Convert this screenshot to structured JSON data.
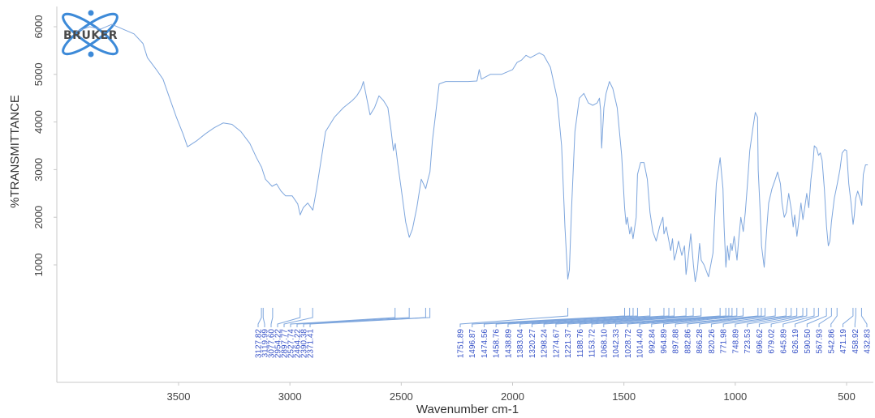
{
  "logo": {
    "text": "BRUKER"
  },
  "colors": {
    "spectrum": "#7ea6dd",
    "peak_lines": "#7ea6dd",
    "peak_labels": "#3a55c8",
    "axis": "#c8c8c8",
    "logo_orbit": "#3d8ad8"
  },
  "chart_data": {
    "type": "line",
    "title": "",
    "xlabel": "Wavenumber cm-1",
    "ylabel": "%TRANSMITTANCE",
    "xlim": [
      3960,
      400
    ],
    "ylim": [
      -2200,
      6200
    ],
    "x_reversed": true,
    "grid": false,
    "legend": "none",
    "x_ticks": [
      {
        "value": 3500,
        "label": "3500"
      },
      {
        "value": 3000,
        "label": "3000"
      },
      {
        "value": 2500,
        "label": "2500"
      },
      {
        "value": 2000,
        "label": "2000"
      },
      {
        "value": 1500,
        "label": "1500"
      },
      {
        "value": 1000,
        "label": "1000"
      },
      {
        "value": 500,
        "label": "500"
      }
    ],
    "y_ticks": [
      {
        "value": 1000,
        "label": "1000"
      },
      {
        "value": 2000,
        "label": "2000"
      },
      {
        "value": 3000,
        "label": "3000"
      },
      {
        "value": 4000,
        "label": "4000"
      },
      {
        "value": 5000,
        "label": "5000"
      },
      {
        "value": 6000,
        "label": "6000"
      }
    ],
    "series": [
      {
        "points": [
          [
            3960,
            5900
          ],
          [
            3900,
            6000
          ],
          [
            3850,
            5950
          ],
          [
            3800,
            6050
          ],
          [
            3750,
            5950
          ],
          [
            3700,
            5850
          ],
          [
            3660,
            5650
          ],
          [
            3640,
            5350
          ],
          [
            3600,
            5100
          ],
          [
            3570,
            4900
          ],
          [
            3540,
            4500
          ],
          [
            3510,
            4100
          ],
          [
            3480,
            3750
          ],
          [
            3460,
            3480
          ],
          [
            3420,
            3600
          ],
          [
            3380,
            3750
          ],
          [
            3340,
            3880
          ],
          [
            3300,
            3980
          ],
          [
            3260,
            3950
          ],
          [
            3220,
            3800
          ],
          [
            3180,
            3550
          ],
          [
            3150,
            3250
          ],
          [
            3127,
            3050
          ],
          [
            3110,
            2800
          ],
          [
            3080,
            2650
          ],
          [
            3060,
            2700
          ],
          [
            3040,
            2550
          ],
          [
            3020,
            2450
          ],
          [
            2990,
            2450
          ],
          [
            2965,
            2280
          ],
          [
            2954,
            2050
          ],
          [
            2940,
            2200
          ],
          [
            2920,
            2300
          ],
          [
            2897,
            2150
          ],
          [
            2880,
            2600
          ],
          [
            2860,
            3200
          ],
          [
            2840,
            3800
          ],
          [
            2800,
            4100
          ],
          [
            2760,
            4300
          ],
          [
            2720,
            4450
          ],
          [
            2700,
            4550
          ],
          [
            2680,
            4700
          ],
          [
            2670,
            4850
          ],
          [
            2655,
            4500
          ],
          [
            2640,
            4150
          ],
          [
            2620,
            4300
          ],
          [
            2600,
            4550
          ],
          [
            2580,
            4450
          ],
          [
            2560,
            4300
          ],
          [
            2545,
            3800
          ],
          [
            2535,
            3400
          ],
          [
            2527,
            3550
          ],
          [
            2515,
            3100
          ],
          [
            2500,
            2600
          ],
          [
            2480,
            1900
          ],
          [
            2464,
            1580
          ],
          [
            2450,
            1750
          ],
          [
            2430,
            2200
          ],
          [
            2410,
            2800
          ],
          [
            2390,
            2600
          ],
          [
            2380,
            2800
          ],
          [
            2371,
            2950
          ],
          [
            2360,
            3600
          ],
          [
            2345,
            4200
          ],
          [
            2330,
            4800
          ],
          [
            2300,
            4850
          ],
          [
            2250,
            4850
          ],
          [
            2200,
            4850
          ],
          [
            2160,
            4860
          ],
          [
            2150,
            5100
          ],
          [
            2140,
            4900
          ],
          [
            2100,
            5000
          ],
          [
            2050,
            5000
          ],
          [
            2000,
            5100
          ],
          [
            1980,
            5250
          ],
          [
            1960,
            5300
          ],
          [
            1940,
            5400
          ],
          [
            1920,
            5350
          ],
          [
            1900,
            5400
          ],
          [
            1880,
            5450
          ],
          [
            1860,
            5400
          ],
          [
            1830,
            5150
          ],
          [
            1800,
            4500
          ],
          [
            1780,
            3500
          ],
          [
            1765,
            1800
          ],
          [
            1752,
            700
          ],
          [
            1745,
            900
          ],
          [
            1735,
            2200
          ],
          [
            1720,
            3800
          ],
          [
            1700,
            4500
          ],
          [
            1680,
            4600
          ],
          [
            1660,
            4400
          ],
          [
            1640,
            4350
          ],
          [
            1620,
            4400
          ],
          [
            1610,
            4500
          ],
          [
            1605,
            4250
          ],
          [
            1600,
            3450
          ],
          [
            1590,
            4300
          ],
          [
            1580,
            4600
          ],
          [
            1565,
            4850
          ],
          [
            1550,
            4700
          ],
          [
            1530,
            4300
          ],
          [
            1510,
            3300
          ],
          [
            1497,
            2200
          ],
          [
            1490,
            1850
          ],
          [
            1485,
            2000
          ],
          [
            1474,
            1650
          ],
          [
            1467,
            1800
          ],
          [
            1459,
            1550
          ],
          [
            1445,
            2000
          ],
          [
            1439,
            2900
          ],
          [
            1425,
            3150
          ],
          [
            1410,
            3150
          ],
          [
            1395,
            2800
          ],
          [
            1383,
            2100
          ],
          [
            1370,
            1700
          ],
          [
            1355,
            1500
          ],
          [
            1340,
            1800
          ],
          [
            1325,
            2000
          ],
          [
            1320,
            1650
          ],
          [
            1310,
            1800
          ],
          [
            1298,
            1500
          ],
          [
            1290,
            1300
          ],
          [
            1282,
            1550
          ],
          [
            1274,
            1100
          ],
          [
            1265,
            1250
          ],
          [
            1255,
            1500
          ],
          [
            1240,
            1200
          ],
          [
            1228,
            1400
          ],
          [
            1221,
            800
          ],
          [
            1210,
            1200
          ],
          [
            1200,
            1650
          ],
          [
            1188,
            1000
          ],
          [
            1180,
            650
          ],
          [
            1170,
            900
          ],
          [
            1160,
            1450
          ],
          [
            1153,
            1100
          ],
          [
            1140,
            1000
          ],
          [
            1120,
            750
          ],
          [
            1100,
            1250
          ],
          [
            1085,
            2700
          ],
          [
            1068,
            3250
          ],
          [
            1055,
            2600
          ],
          [
            1050,
            1800
          ],
          [
            1042,
            950
          ],
          [
            1035,
            1400
          ],
          [
            1028,
            1100
          ],
          [
            1020,
            1450
          ],
          [
            1014,
            1300
          ],
          [
            1005,
            1600
          ],
          [
            992,
            1100
          ],
          [
            985,
            1500
          ],
          [
            975,
            2000
          ],
          [
            964,
            1700
          ],
          [
            955,
            2100
          ],
          [
            945,
            2700
          ],
          [
            935,
            3400
          ],
          [
            920,
            3900
          ],
          [
            910,
            4200
          ],
          [
            900,
            4100
          ],
          [
            897,
            3000
          ],
          [
            885,
            1800
          ],
          [
            882,
            1400
          ],
          [
            870,
            950
          ],
          [
            866,
            1250
          ],
          [
            858,
            1800
          ],
          [
            850,
            2300
          ],
          [
            835,
            2600
          ],
          [
            820,
            2800
          ],
          [
            810,
            2950
          ],
          [
            797,
            2700
          ],
          [
            790,
            2300
          ],
          [
            780,
            2000
          ],
          [
            771,
            2100
          ],
          [
            760,
            2500
          ],
          [
            748,
            2150
          ],
          [
            740,
            1800
          ],
          [
            733,
            2050
          ],
          [
            723,
            1600
          ],
          [
            715,
            1900
          ],
          [
            705,
            2300
          ],
          [
            696,
            1950
          ],
          [
            688,
            2200
          ],
          [
            679,
            2500
          ],
          [
            670,
            2200
          ],
          [
            660,
            2800
          ],
          [
            650,
            3200
          ],
          [
            645,
            3500
          ],
          [
            635,
            3450
          ],
          [
            626,
            3300
          ],
          [
            618,
            3350
          ],
          [
            610,
            3200
          ],
          [
            600,
            2600
          ],
          [
            590,
            1800
          ],
          [
            582,
            1400
          ],
          [
            575,
            1500
          ],
          [
            568,
            1900
          ],
          [
            555,
            2400
          ],
          [
            542,
            2700
          ],
          [
            530,
            3000
          ],
          [
            520,
            3350
          ],
          [
            508,
            3420
          ],
          [
            500,
            3400
          ],
          [
            490,
            2700
          ],
          [
            480,
            2300
          ],
          [
            471,
            1850
          ],
          [
            465,
            2050
          ],
          [
            459,
            2400
          ],
          [
            450,
            2550
          ],
          [
            440,
            2400
          ],
          [
            432,
            2250
          ],
          [
            425,
            2900
          ],
          [
            415,
            3100
          ],
          [
            405,
            3100
          ]
        ]
      }
    ],
    "peaks_group_a": [
      "3127.82",
      "3119.99",
      "3077.60",
      "2954.22",
      "2897.77",
      "2527.74",
      "2464.22",
      "2390.38",
      "2371.41"
    ],
    "peaks_group_b": [
      "1751.89",
      "1496.87",
      "1474.56",
      "1458.76",
      "1438.89",
      "1383.04",
      "1320.27",
      "1298.24",
      "1274.67",
      "1221.37",
      "1188.76",
      "1153.72",
      "1068.10",
      "1042.33",
      "1028.72",
      "1014.40",
      "992.84",
      "964.89",
      "897.88",
      "882.86",
      "866.28",
      "820.26",
      "771.98",
      "748.89",
      "723.53",
      "696.62",
      "679.02",
      "645.89",
      "626.19",
      "590.50",
      "567.93",
      "542.86",
      "471.19",
      "458.92",
      "432.83"
    ]
  }
}
